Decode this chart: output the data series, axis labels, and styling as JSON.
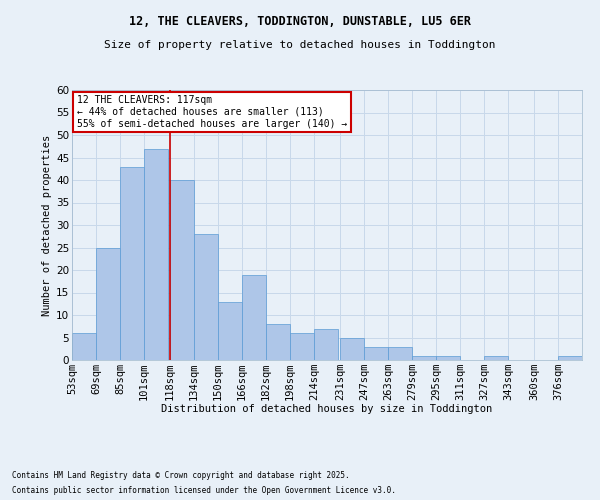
{
  "title1": "12, THE CLEAVERS, TODDINGTON, DUNSTABLE, LU5 6ER",
  "title2": "Size of property relative to detached houses in Toddington",
  "xlabel": "Distribution of detached houses by size in Toddington",
  "ylabel": "Number of detached properties",
  "footnote1": "Contains HM Land Registry data © Crown copyright and database right 2025.",
  "footnote2": "Contains public sector information licensed under the Open Government Licence v3.0.",
  "bin_labels": [
    "53sqm",
    "69sqm",
    "85sqm",
    "101sqm",
    "118sqm",
    "134sqm",
    "150sqm",
    "166sqm",
    "182sqm",
    "198sqm",
    "214sqm",
    "231sqm",
    "247sqm",
    "263sqm",
    "279sqm",
    "295sqm",
    "311sqm",
    "327sqm",
    "343sqm",
    "360sqm",
    "376sqm"
  ],
  "bar_values": [
    6,
    25,
    43,
    47,
    40,
    28,
    13,
    19,
    8,
    6,
    7,
    5,
    3,
    3,
    1,
    1,
    0,
    1,
    0,
    0,
    1
  ],
  "bar_color": "#aec6e8",
  "bar_edge_color": "#5b9bd5",
  "bin_edges": [
    53,
    69,
    85,
    101,
    118,
    134,
    150,
    166,
    182,
    198,
    214,
    231,
    247,
    263,
    279,
    295,
    311,
    327,
    343,
    360,
    376,
    392
  ],
  "annotation_text": "12 THE CLEAVERS: 117sqm\n← 44% of detached houses are smaller (113)\n55% of semi-detached houses are larger (140) →",
  "annotation_box_color": "#ffffff",
  "annotation_box_edge": "#cc0000",
  "vline_color": "#cc0000",
  "grid_color": "#c8d8ea",
  "background_color": "#e8f0f8",
  "ylim": [
    0,
    60
  ],
  "yticks": [
    0,
    5,
    10,
    15,
    20,
    25,
    30,
    35,
    40,
    45,
    50,
    55,
    60
  ]
}
